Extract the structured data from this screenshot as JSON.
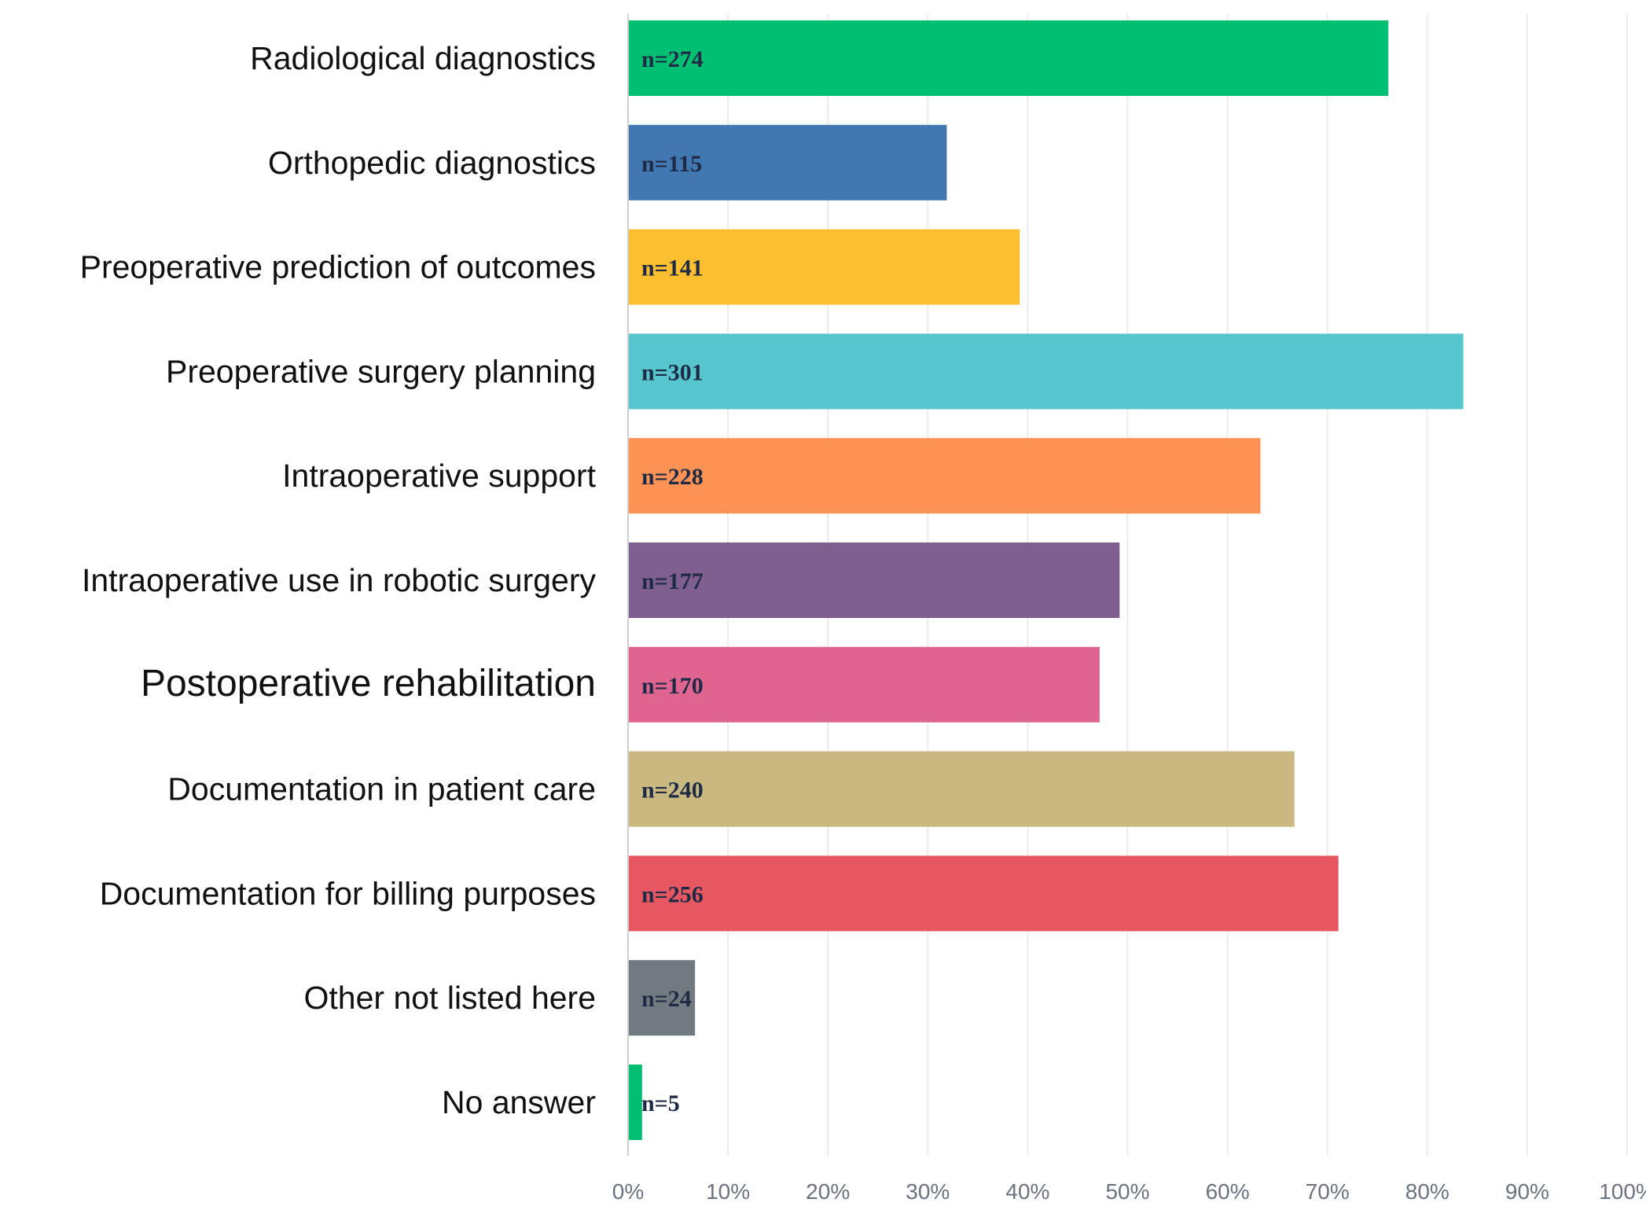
{
  "chart_data": {
    "type": "bar",
    "orientation": "horizontal",
    "title": "",
    "xlabel": "",
    "ylabel": "",
    "xlim": [
      0,
      100
    ],
    "x_unit": "%",
    "grid": true,
    "categories": [
      "Radiological diagnostics",
      "Orthopedic diagnostics",
      "Preoperative prediction of outcomes",
      "Preoperative surgery planning",
      "Intraoperative support",
      "Intraoperative use in robotic surgery",
      "Postoperative rehabilitation",
      "Documentation in patient care",
      "Documentation for billing purposes",
      "Other not listed here",
      "No answer"
    ],
    "values": [
      76.1,
      31.9,
      39.2,
      83.6,
      63.3,
      49.2,
      47.2,
      66.7,
      71.1,
      6.7,
      1.4
    ],
    "bar_labels": [
      "n=274",
      "n=115",
      "n=141",
      "n=301",
      "n=228",
      "n=177",
      "n=170",
      "n=240",
      "n=256",
      "n=24",
      "n=5"
    ],
    "colors": [
      "#00bf72",
      "#4178b1",
      "#fcbf30",
      "#56c5cd",
      "#fd9255",
      "#7f5f90",
      "#df6590",
      "#cab881",
      "#e65762",
      "#727a81",
      "#00bf72"
    ],
    "xticks": [
      "0%",
      "10%",
      "20%",
      "30%",
      "40%",
      "50%",
      "60%",
      "70%",
      "80%",
      "90%",
      "100%"
    ]
  }
}
